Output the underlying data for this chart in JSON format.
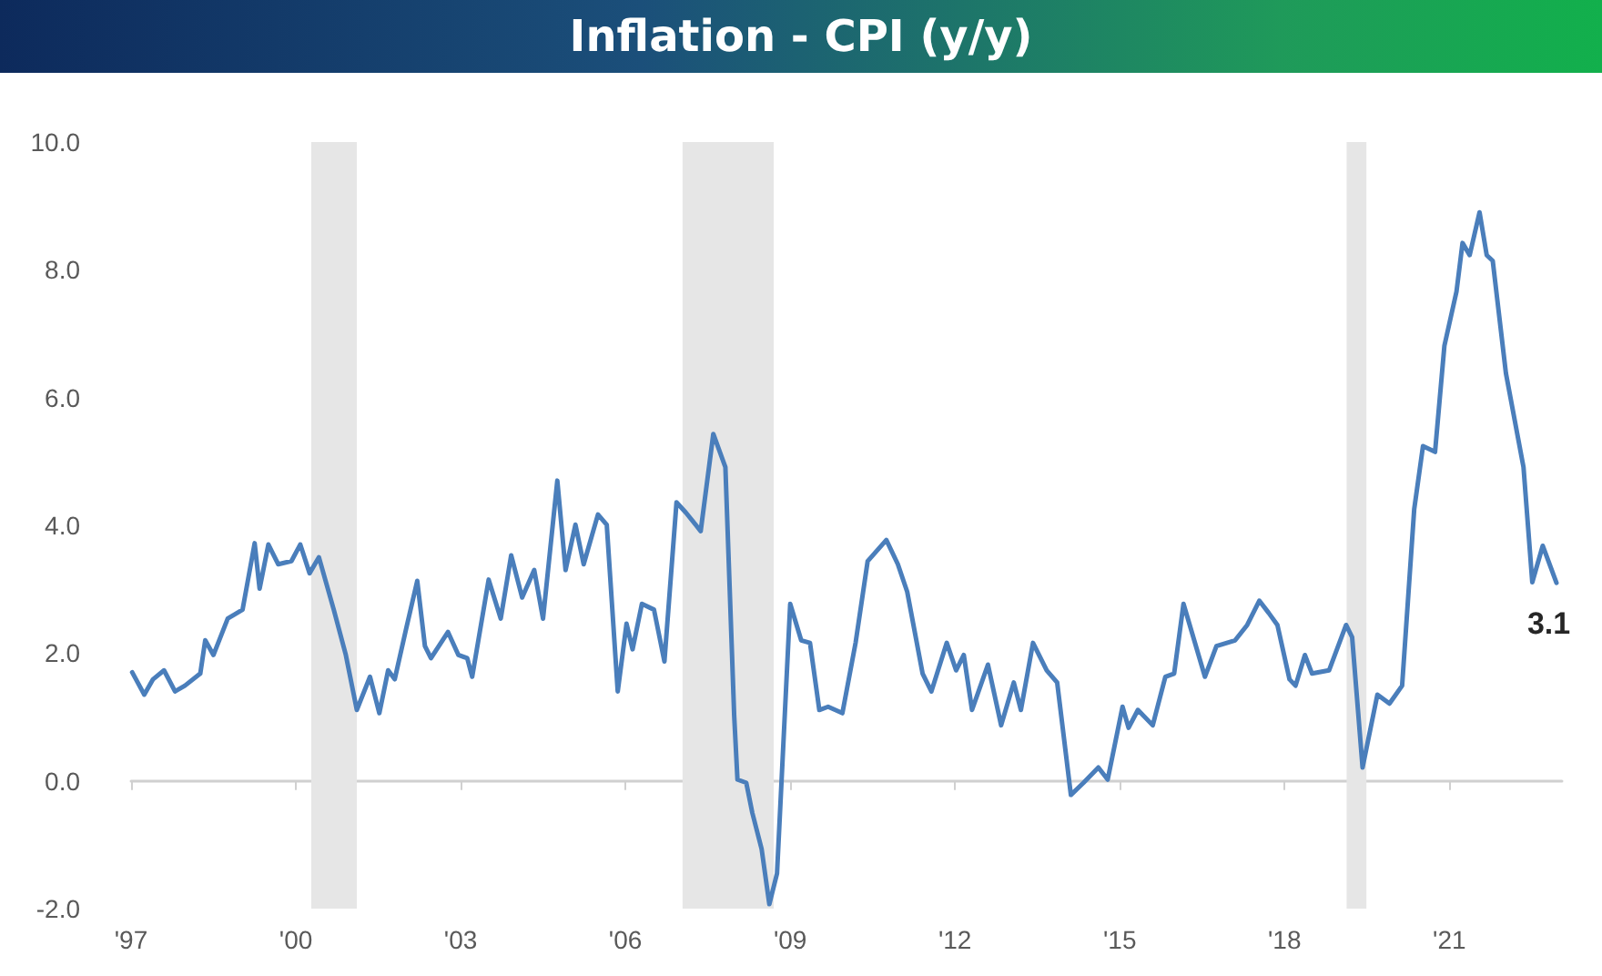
{
  "chart_data": {
    "type": "line",
    "title": "Inflation - CPI (y/y)",
    "series": [
      {
        "color": "#4a7ebb",
        "x": [
          1997.02,
          1997.24,
          1997.4,
          1997.6,
          1997.8,
          1997.98,
          1998.26,
          1998.35,
          1998.5,
          1998.76,
          1999.03,
          1999.25,
          1999.34,
          1999.5,
          1999.68,
          1999.92,
          2000.08,
          2000.25,
          2000.42,
          2000.69,
          2000.91,
          2001.11,
          2001.35,
          2001.52,
          2001.68,
          2001.8,
          2002.01,
          2002.21,
          2002.35,
          2002.46,
          2002.77,
          2002.96,
          2003.12,
          2003.21,
          2003.51,
          2003.73,
          2003.92,
          2004.12,
          2004.34,
          2004.5,
          2004.76,
          2004.91,
          2005.09,
          2005.24,
          2005.5,
          2005.66,
          2005.86,
          2006.02,
          2006.13,
          2006.3,
          2006.52,
          2006.71,
          2006.93,
          2007.1,
          2007.37,
          2007.6,
          2007.82,
          2007.98,
          2008.04,
          2008.2,
          2008.31,
          2008.48,
          2008.62,
          2008.76,
          2009.0,
          2009.2,
          2009.36,
          2009.53,
          2009.69,
          2009.95,
          2010.19,
          2010.41,
          2010.75,
          2010.96,
          2011.13,
          2011.41,
          2011.57,
          2011.85,
          2012.02,
          2012.16,
          2012.31,
          2012.6,
          2012.84,
          2013.07,
          2013.2,
          2013.42,
          2013.67,
          2013.86,
          2014.11,
          2014.34,
          2014.61,
          2014.78,
          2015.05,
          2015.16,
          2015.33,
          2015.6,
          2015.83,
          2015.99,
          2016.16,
          2016.55,
          2016.76,
          2017.1,
          2017.32,
          2017.54,
          2017.71,
          2017.87,
          2018.09,
          2018.2,
          2018.37,
          2018.5,
          2018.81,
          2019.12,
          2019.23,
          2019.42,
          2019.69,
          2019.91,
          2020.14,
          2020.36,
          2020.52,
          2020.74,
          2020.91,
          2021.13,
          2021.24,
          2021.37,
          2021.55,
          2021.68,
          2021.79,
          2022.03,
          2022.35,
          2022.51,
          2022.7,
          2022.95
        ],
        "values": [
          1.7,
          1.35,
          1.59,
          1.73,
          1.4,
          1.49,
          1.68,
          2.2,
          1.97,
          2.54,
          2.68,
          3.72,
          3.01,
          3.7,
          3.39,
          3.44,
          3.7,
          3.25,
          3.5,
          2.68,
          1.97,
          1.11,
          1.63,
          1.06,
          1.73,
          1.59,
          2.39,
          3.13,
          2.11,
          1.92,
          2.33,
          1.97,
          1.92,
          1.63,
          3.15,
          2.54,
          3.53,
          2.87,
          3.3,
          2.54,
          4.7,
          3.3,
          4.01,
          3.39,
          4.17,
          4.01,
          1.4,
          2.46,
          2.06,
          2.77,
          2.68,
          1.87,
          4.36,
          4.2,
          3.91,
          5.43,
          4.91,
          1.02,
          0.02,
          -0.03,
          -0.5,
          -1.07,
          -1.93,
          -1.45,
          2.77,
          2.2,
          2.16,
          1.11,
          1.16,
          1.06,
          2.16,
          3.44,
          3.77,
          3.39,
          2.96,
          1.68,
          1.4,
          2.16,
          1.73,
          1.97,
          1.11,
          1.82,
          0.87,
          1.54,
          1.11,
          2.16,
          1.73,
          1.54,
          -0.22,
          -0.03,
          0.21,
          0.02,
          1.16,
          0.83,
          1.11,
          0.87,
          1.63,
          1.68,
          2.77,
          1.63,
          2.11,
          2.2,
          2.44,
          2.82,
          2.63,
          2.44,
          1.59,
          1.49,
          1.97,
          1.68,
          1.73,
          2.44,
          2.25,
          0.21,
          1.35,
          1.21,
          1.49,
          4.25,
          5.24,
          5.15,
          6.81,
          7.66,
          8.42,
          8.23,
          8.9,
          8.23,
          8.14,
          6.38,
          4.91,
          3.11,
          3.68,
          3.1
        ]
      }
    ],
    "xlim": [
      1997,
      2023.05
    ],
    "xticks": [
      {
        "value": 1997,
        "label": "'97"
      },
      {
        "value": 2000,
        "label": "'00"
      },
      {
        "value": 2003,
        "label": "'03"
      },
      {
        "value": 2006,
        "label": "'06"
      },
      {
        "value": 2009,
        "label": "'09"
      },
      {
        "value": 2012,
        "label": "'12"
      },
      {
        "value": 2015,
        "label": "'15"
      },
      {
        "value": 2018,
        "label": "'18"
      },
      {
        "value": 2021,
        "label": "'21"
      }
    ],
    "ylim": [
      -2,
      10
    ],
    "yticks": [
      {
        "value": -2,
        "label": "-2.0"
      },
      {
        "value": 0,
        "label": "0.0"
      },
      {
        "value": 2,
        "label": "2.0"
      },
      {
        "value": 4,
        "label": "4.0"
      },
      {
        "value": 6,
        "label": "6.0"
      },
      {
        "value": 8,
        "label": "8.0"
      },
      {
        "value": 10,
        "label": "10.0"
      }
    ],
    "bands": [
      {
        "axis": "x",
        "from": 2000.28,
        "to": 2001.11,
        "color": "#e6e6e6"
      },
      {
        "axis": "x",
        "from": 2007.04,
        "to": 2008.7,
        "color": "#e6e6e6"
      },
      {
        "axis": "x",
        "from": 2019.13,
        "to": 2019.49,
        "color": "#e6e6e6"
      }
    ],
    "annotations": [
      {
        "text": "3.1",
        "x": 2022.95,
        "y": 3.1
      }
    ],
    "marker": "none",
    "line_style": "solid"
  }
}
